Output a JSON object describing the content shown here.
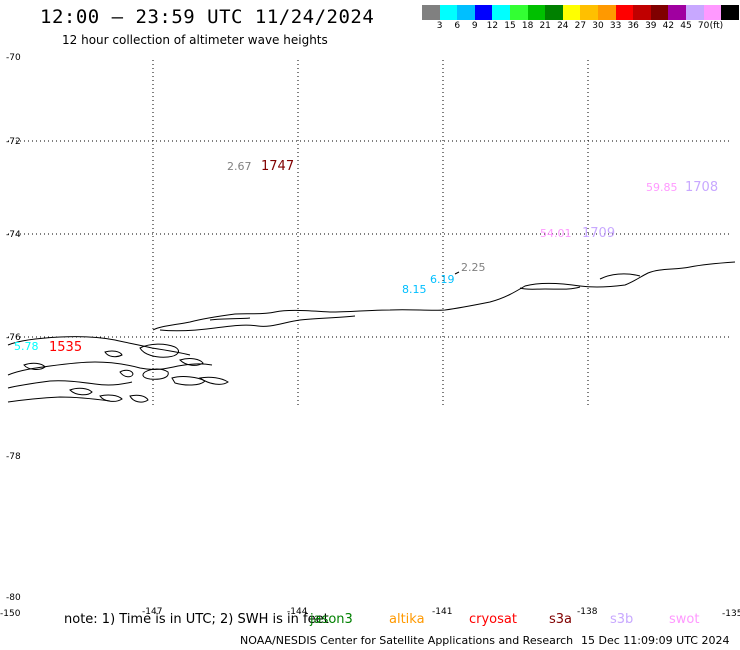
{
  "header": {
    "title": "12:00 – 23:59 UTC 11/24/2024",
    "subtitle": "12 hour collection of altimeter wave heights"
  },
  "colorbar": {
    "colors": [
      "#808080",
      "#00ffff",
      "#00bfff",
      "#0000ff",
      "#00ffff",
      "#33ff33",
      "#00c000",
      "#008000",
      "#ffff00",
      "#ffc000",
      "#ff9900",
      "#ff0000",
      "#c00000",
      "#800000",
      "#a000a0",
      "#c8a8ff",
      "#ff99ff",
      "#000000"
    ],
    "labels": [
      "3",
      "6",
      "9",
      "12",
      "15",
      "18",
      "21",
      "24",
      "27",
      "30",
      "33",
      "36",
      "39",
      "42",
      "45",
      "70",
      "(ft)"
    ]
  },
  "map": {
    "lat_labels": [
      "-70",
      "-72",
      "-74",
      "-76",
      "-78",
      "-80"
    ],
    "lon_labels": [
      "-150",
      "-147",
      "-144",
      "-141",
      "-138",
      "-135"
    ],
    "observations": [
      {
        "text": "2.67",
        "color": "#808080"
      },
      {
        "text": "1747",
        "color": "#800000"
      },
      {
        "text": "59.85",
        "color": "#ff99ff"
      },
      {
        "text": "1708",
        "color": "#c8a8ff"
      },
      {
        "text": "54.01",
        "color": "#ff99ff"
      },
      {
        "text": "1709",
        "color": "#c8a8ff"
      },
      {
        "text": "2.25",
        "color": "#808080"
      },
      {
        "text": "6.19",
        "color": "#00bfff"
      },
      {
        "text": "8.15",
        "color": "#00bfff"
      },
      {
        "text": "5.78",
        "color": "#00ffff"
      },
      {
        "text": "1535",
        "color": "#ff0000"
      }
    ]
  },
  "footer": {
    "note": "note: 1) Time is in UTC; 2) SWH is in feet",
    "legend": [
      {
        "text": "jason3",
        "color": "#008000"
      },
      {
        "text": "altika",
        "color": "#ff9900"
      },
      {
        "text": "cryosat",
        "color": "#ff0000"
      },
      {
        "text": "s3a",
        "color": "#800000"
      },
      {
        "text": "s3b",
        "color": "#c8a8ff"
      },
      {
        "text": "swot",
        "color": "#ff99ff"
      }
    ],
    "credit": "NOAA/NESDIS Center for Satellite Applications and Research",
    "date": "15 Dec 11:09:09 UTC 2024"
  }
}
